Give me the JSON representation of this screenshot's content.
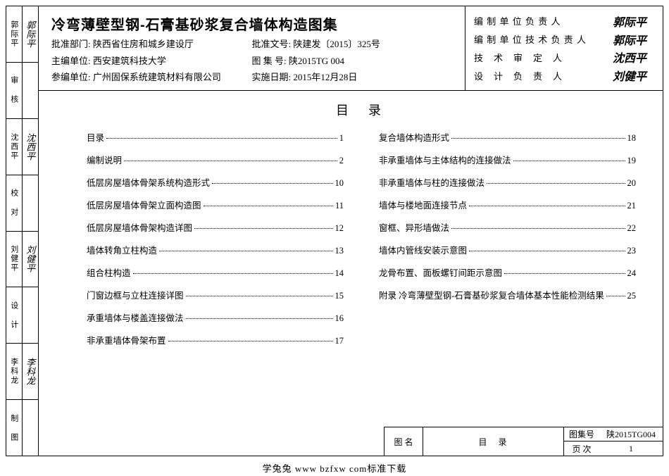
{
  "sidebar": [
    {
      "role": "",
      "sig": ""
    },
    {
      "role": "审核",
      "sig": ""
    },
    {
      "role": "沈西平",
      "sig": "沈西平"
    },
    {
      "role": "校对",
      "sig": ""
    },
    {
      "role": "刘健平",
      "sig": "刘健平"
    },
    {
      "role": "设计",
      "sig": ""
    },
    {
      "role": "李科龙",
      "sig": "李科龙"
    },
    {
      "role": "制图",
      "sig": ""
    }
  ],
  "side_cells": [
    {
      "left": "郭际平",
      "right": "郭际平",
      "leftSig": false,
      "rightSig": true
    },
    {
      "left": "审 核",
      "right": "",
      "leftSig": false,
      "rightSig": false
    },
    {
      "left": "沈西平",
      "right": "沈西平",
      "leftSig": false,
      "rightSig": true
    },
    {
      "left": "校 对",
      "right": "",
      "leftSig": false,
      "rightSig": false
    },
    {
      "left": "刘健平",
      "right": "刘健平",
      "leftSig": false,
      "rightSig": true
    },
    {
      "left": "设 计",
      "right": "",
      "leftSig": false,
      "rightSig": false
    },
    {
      "left": "李科龙",
      "right": "李科龙",
      "leftSig": false,
      "rightSig": true
    },
    {
      "left": "制 图",
      "right": "",
      "leftSig": false,
      "rightSig": false
    }
  ],
  "header": {
    "title": "冷弯薄壁型钢-石膏基砂浆复合墙体构造图集",
    "rows": [
      {
        "l": "批准部门: 陕西省住房和城乡建设厅",
        "r": "批准文号: 陕建发〔2015〕325号"
      },
      {
        "l": "主编单位: 西安建筑科技大学",
        "r": "图 集 号: 陕2015TG 004"
      },
      {
        "l": "参编单位: 广州固保系统建筑材料有限公司",
        "r": "实施日期: 2015年12月28日"
      }
    ],
    "signers": [
      {
        "label": "编 制 单 位 负 责 人",
        "name": "郭际平"
      },
      {
        "label": "编 制 单 位 技 术 负 责 人",
        "name": "郭际平"
      },
      {
        "label": "技　术　审　定　人",
        "name": "沈西平"
      },
      {
        "label": "设　计　负　责　人",
        "name": "刘健平"
      }
    ]
  },
  "toc": {
    "title": "目录",
    "left": [
      {
        "t": "目录",
        "p": "1"
      },
      {
        "t": "编制说明",
        "p": "2"
      },
      {
        "t": "低层房屋墙体骨架系统构造形式",
        "p": "10"
      },
      {
        "t": "低层房屋墙体骨架立面构造图",
        "p": "11"
      },
      {
        "t": "低层房屋墙体骨架构造详图",
        "p": "12"
      },
      {
        "t": "墙体转角立柱构造",
        "p": "13"
      },
      {
        "t": "组合柱构造",
        "p": "14"
      },
      {
        "t": "门窗边框与立柱连接详图",
        "p": "15"
      },
      {
        "t": "承重墙体与楼盖连接做法",
        "p": "16"
      },
      {
        "t": "非承重墙体骨架布置",
        "p": "17"
      }
    ],
    "right": [
      {
        "t": "复合墙体构造形式",
        "p": "18"
      },
      {
        "t": "非承重墙体与主体结构的连接做法",
        "p": "19"
      },
      {
        "t": "非承重墙体与柱的连接做法",
        "p": "20"
      },
      {
        "t": "墙体与楼地面连接节点",
        "p": "21"
      },
      {
        "t": "窗框、异形墙做法",
        "p": "22"
      },
      {
        "t": "墙体内管线安装示意图",
        "p": "23"
      },
      {
        "t": "龙骨布置、面板螺钉间距示意图",
        "p": "24"
      },
      {
        "t": "附录 冷弯薄壁型钢-石膏基砂浆复合墙体基本性能检测结果",
        "p": "25"
      }
    ]
  },
  "footer": {
    "name_label": "图 名",
    "name_value": "目录",
    "set_label": "图集号",
    "set_value": "陕2015TG004",
    "page_label": "页 次",
    "page_value": "1"
  },
  "watermark": "学兔兔  www bzfxw com标准下载"
}
